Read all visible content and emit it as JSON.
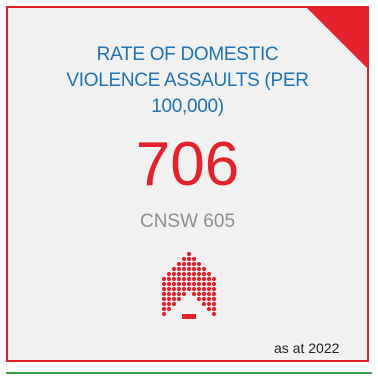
{
  "card": {
    "title_line1": "RATE OF DOMESTIC",
    "title_line2": "VIOLENCE ASSAULTS (PER",
    "title_line3": "100,000)",
    "value": "706",
    "comparison": "CNSW 605",
    "date_note": "as at 2022",
    "icon": "dotted-house-icon"
  },
  "colors": {
    "accent_red": "#e3222b",
    "title_blue": "#1f73b7",
    "muted_gray": "#8e8e8e",
    "card_background": "#f1f1f1",
    "rule_green": "#3aa14a"
  }
}
